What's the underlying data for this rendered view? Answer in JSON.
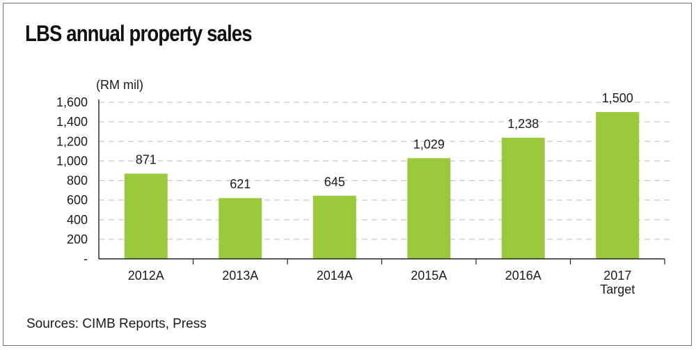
{
  "title": "LBS annual property sales",
  "source": "Sources: CIMB Reports, Press",
  "colors": {
    "bar": "#9aca3c",
    "grid": "#c8c8c8",
    "axis": "#222222",
    "text": "#1a1a1a"
  },
  "chart_data": {
    "type": "bar",
    "title": "LBS annual property sales",
    "ylabel": "(RM mil)",
    "xlabel": "",
    "categories": [
      [
        "2012A"
      ],
      [
        "2013A"
      ],
      [
        "2014A"
      ],
      [
        "2015A"
      ],
      [
        "2016A"
      ],
      [
        "2017",
        "Target"
      ]
    ],
    "values": [
      871,
      621,
      645,
      1029,
      1238,
      1500
    ],
    "value_labels": [
      "871",
      "621",
      "645",
      "1,029",
      "1,238",
      "1,500"
    ],
    "yticks": [
      0,
      200,
      400,
      600,
      800,
      1000,
      1200,
      1400,
      1600
    ],
    "ytick_labels": [
      "-",
      "200",
      "400",
      "600",
      "800",
      "1,000",
      "1,200",
      "1,400",
      "1,600"
    ],
    "ylim": [
      0,
      1600
    ],
    "grid": true,
    "grid_style": "dashed",
    "legend": false
  }
}
